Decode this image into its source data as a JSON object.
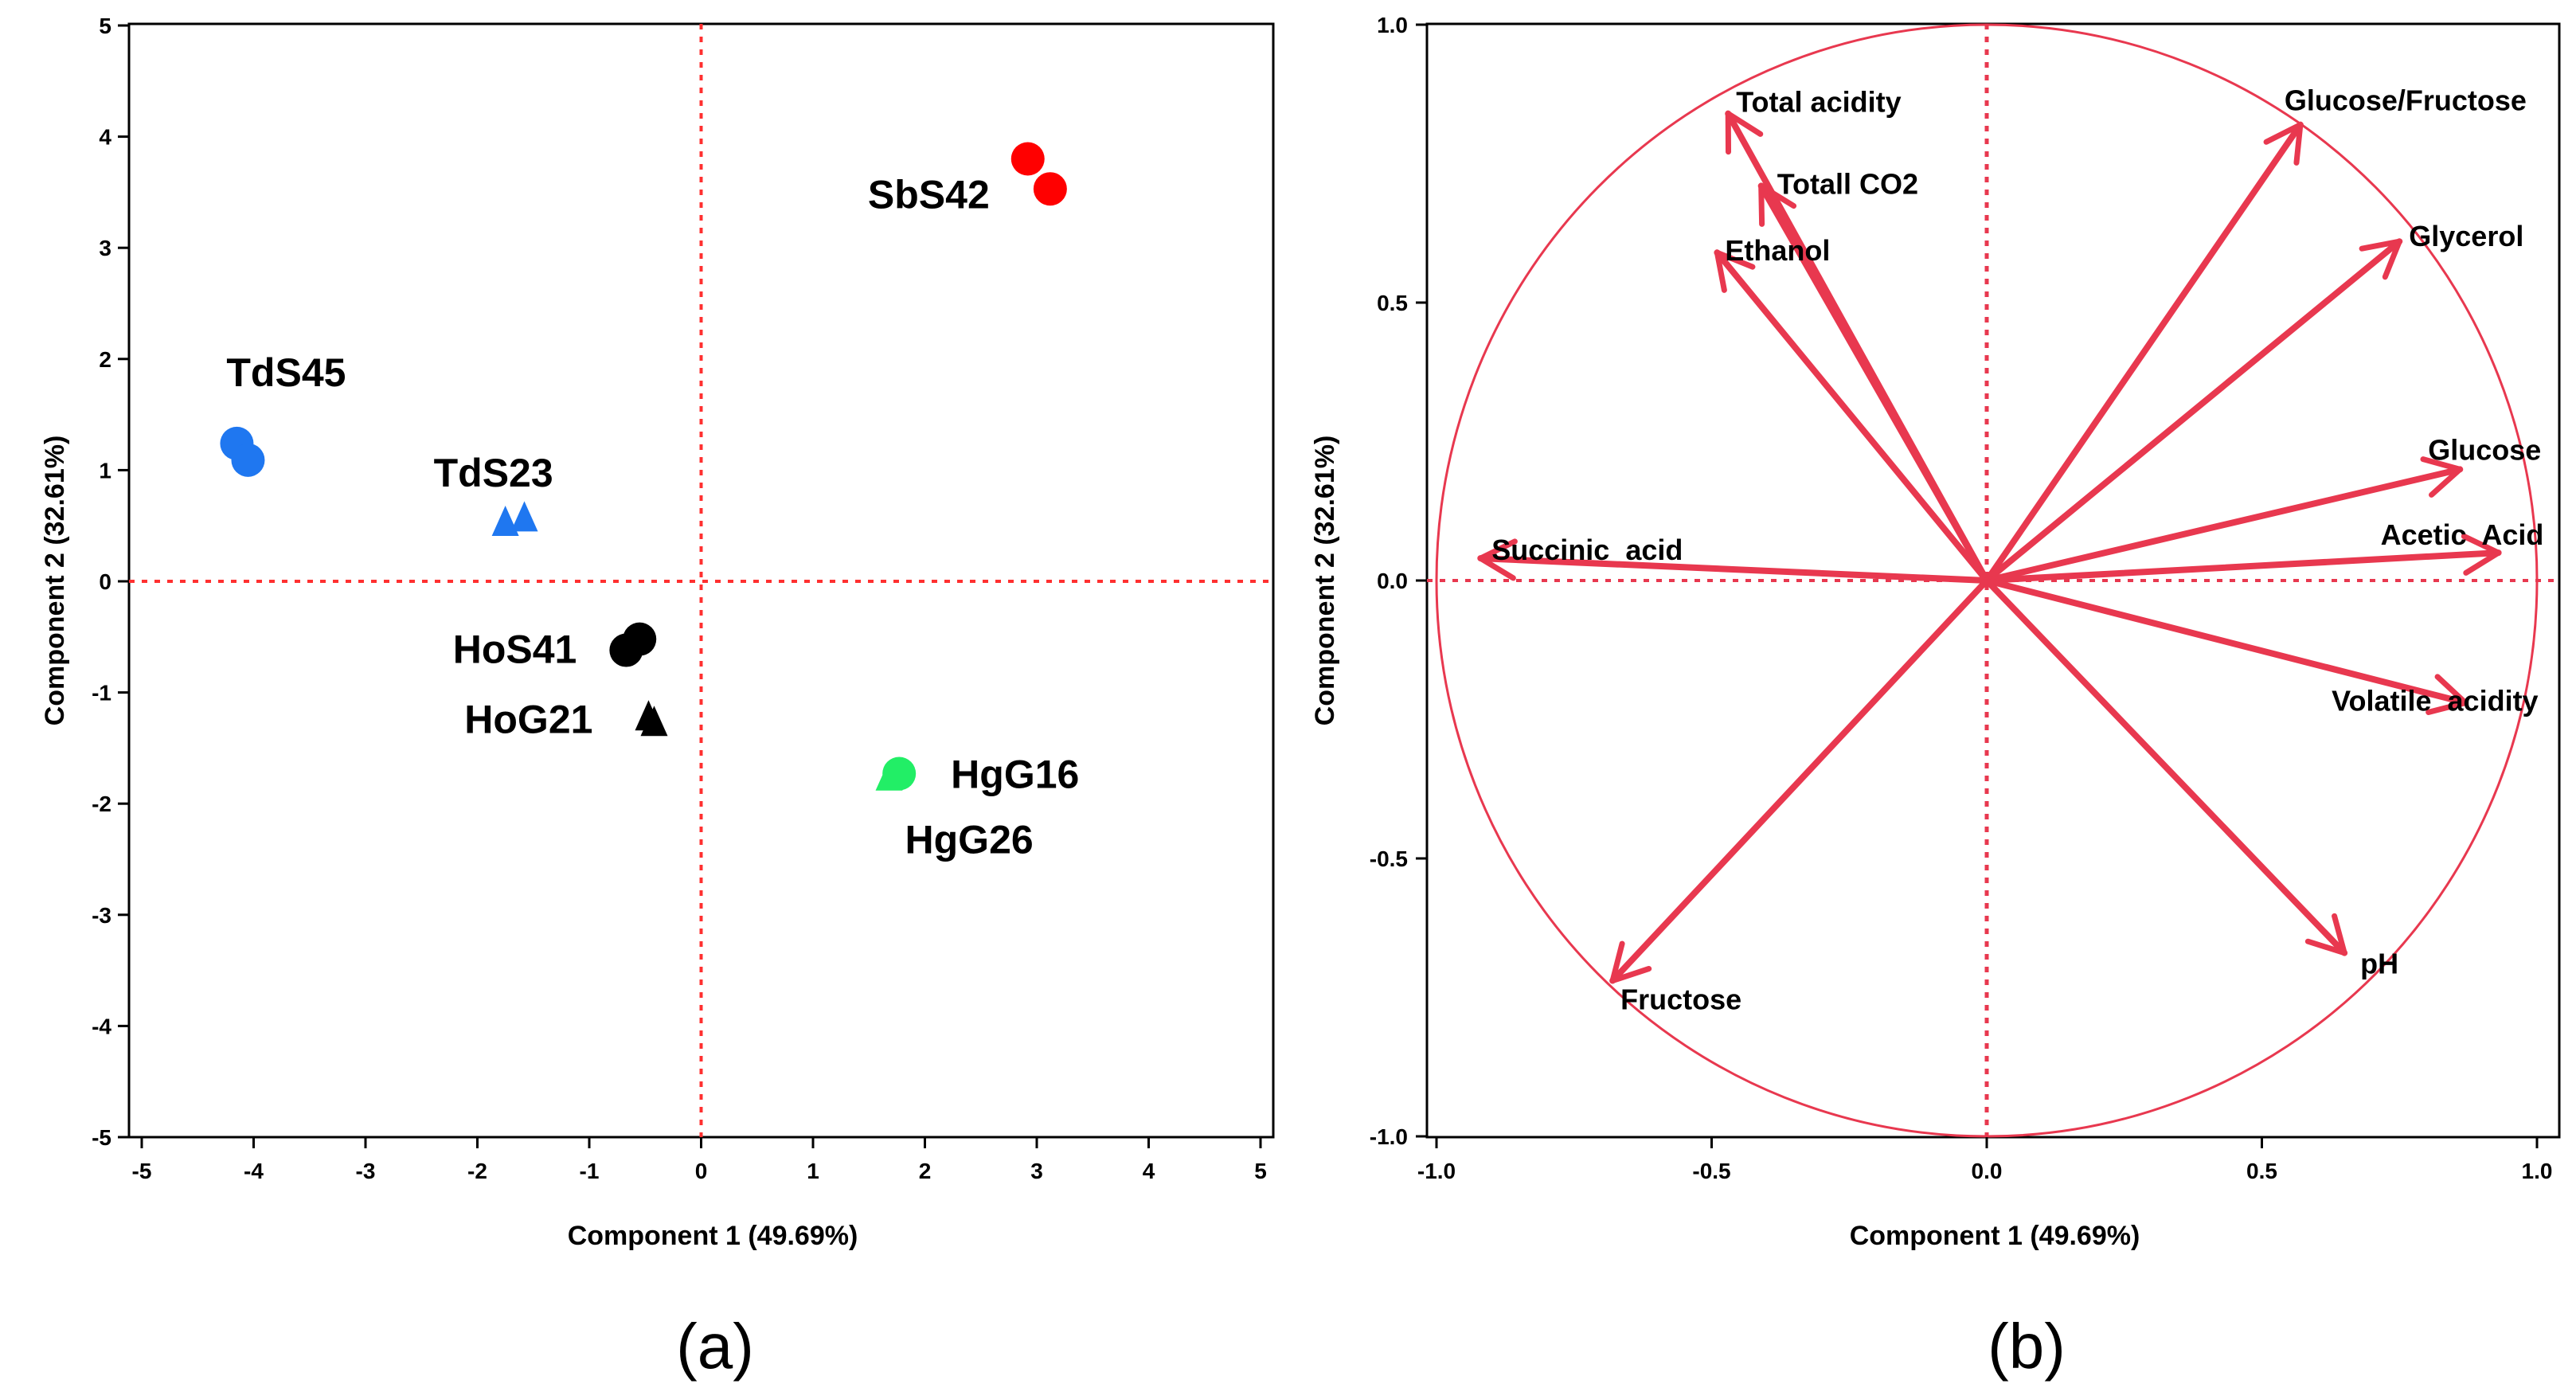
{
  "chart_data": [
    {
      "type": "scatter",
      "panel_label": "(a)",
      "xlabel": "Component 1 (49.69%)",
      "ylabel": "Component 2 (32.61%)",
      "xlim": [
        -5,
        5
      ],
      "ylim": [
        -5,
        5
      ],
      "xticks": [
        -5,
        -4,
        -3,
        -2,
        -1,
        0,
        1,
        2,
        3,
        4,
        5
      ],
      "yticks": [
        -5,
        -4,
        -3,
        -2,
        -1,
        0,
        1,
        2,
        3,
        4,
        5
      ],
      "reference_lines": {
        "x": 0,
        "y": 0,
        "color": "#ff3030",
        "style": "dotted"
      },
      "series": [
        {
          "name": "TdS45",
          "marker": "circle",
          "color": "#1f77f0",
          "points": [
            [
              -4.15,
              1.24
            ],
            [
              -4.05,
              1.09
            ]
          ]
        },
        {
          "name": "TdS23",
          "marker": "triangle",
          "color": "#1f77f0",
          "points": [
            [
              -1.75,
              0.53
            ],
            [
              -1.58,
              0.57
            ]
          ]
        },
        {
          "name": "SbS42",
          "marker": "circle",
          "color": "#ff0000",
          "points": [
            [
              2.92,
              3.8
            ],
            [
              3.12,
              3.53
            ]
          ]
        },
        {
          "name": "HoS41",
          "marker": "circle",
          "color": "#000000",
          "points": [
            [
              -0.67,
              -0.62
            ],
            [
              -0.55,
              -0.52
            ]
          ]
        },
        {
          "name": "HoG21",
          "marker": "triangle",
          "color": "#000000",
          "points": [
            [
              -0.47,
              -1.22
            ],
            [
              -0.42,
              -1.27
            ]
          ]
        },
        {
          "name": "HgG16",
          "marker": "circle",
          "color": "#22ee66",
          "points": [
            [
              1.77,
              -1.73
            ]
          ]
        },
        {
          "name": "HgG26",
          "marker": "triangle",
          "color": "#22ee66",
          "points": [
            [
              1.68,
              -1.76
            ]
          ]
        }
      ]
    },
    {
      "type": "biplot",
      "panel_label": "(b)",
      "xlabel": "Component 1 (49.69%)",
      "ylabel": "Component 2 (32.61%)",
      "xlim": [
        -1.0,
        1.0
      ],
      "ylim": [
        -1.0,
        1.0
      ],
      "xticks": [
        "-1.0",
        "-0.5",
        "0.0",
        "0.5",
        "1.0"
      ],
      "yticks": [
        "-1.0",
        "-0.5",
        "0.0",
        "0.5",
        "1.0"
      ],
      "circle_radius": 1.0,
      "color": "#e8384f",
      "loadings": [
        {
          "name": "Total acidity",
          "x": -0.47,
          "y": 0.84
        },
        {
          "name": "Totall CO2",
          "x": -0.41,
          "y": 0.71
        },
        {
          "name": "Ethanol",
          "x": -0.49,
          "y": 0.59
        },
        {
          "name": "Glucose/Fructose",
          "x": 0.57,
          "y": 0.82
        },
        {
          "name": "Glycerol",
          "x": 0.75,
          "y": 0.61
        },
        {
          "name": "Glucose",
          "x": 0.86,
          "y": 0.2
        },
        {
          "name": "Acetic  Acid",
          "x": 0.93,
          "y": 0.05
        },
        {
          "name": "Succinic  acid",
          "x": -0.92,
          "y": 0.04
        },
        {
          "name": "Volatile  acidity",
          "x": 0.87,
          "y": -0.22
        },
        {
          "name": "pH",
          "x": 0.65,
          "y": -0.67
        },
        {
          "name": "Fructose",
          "x": -0.68,
          "y": -0.72
        }
      ]
    }
  ]
}
